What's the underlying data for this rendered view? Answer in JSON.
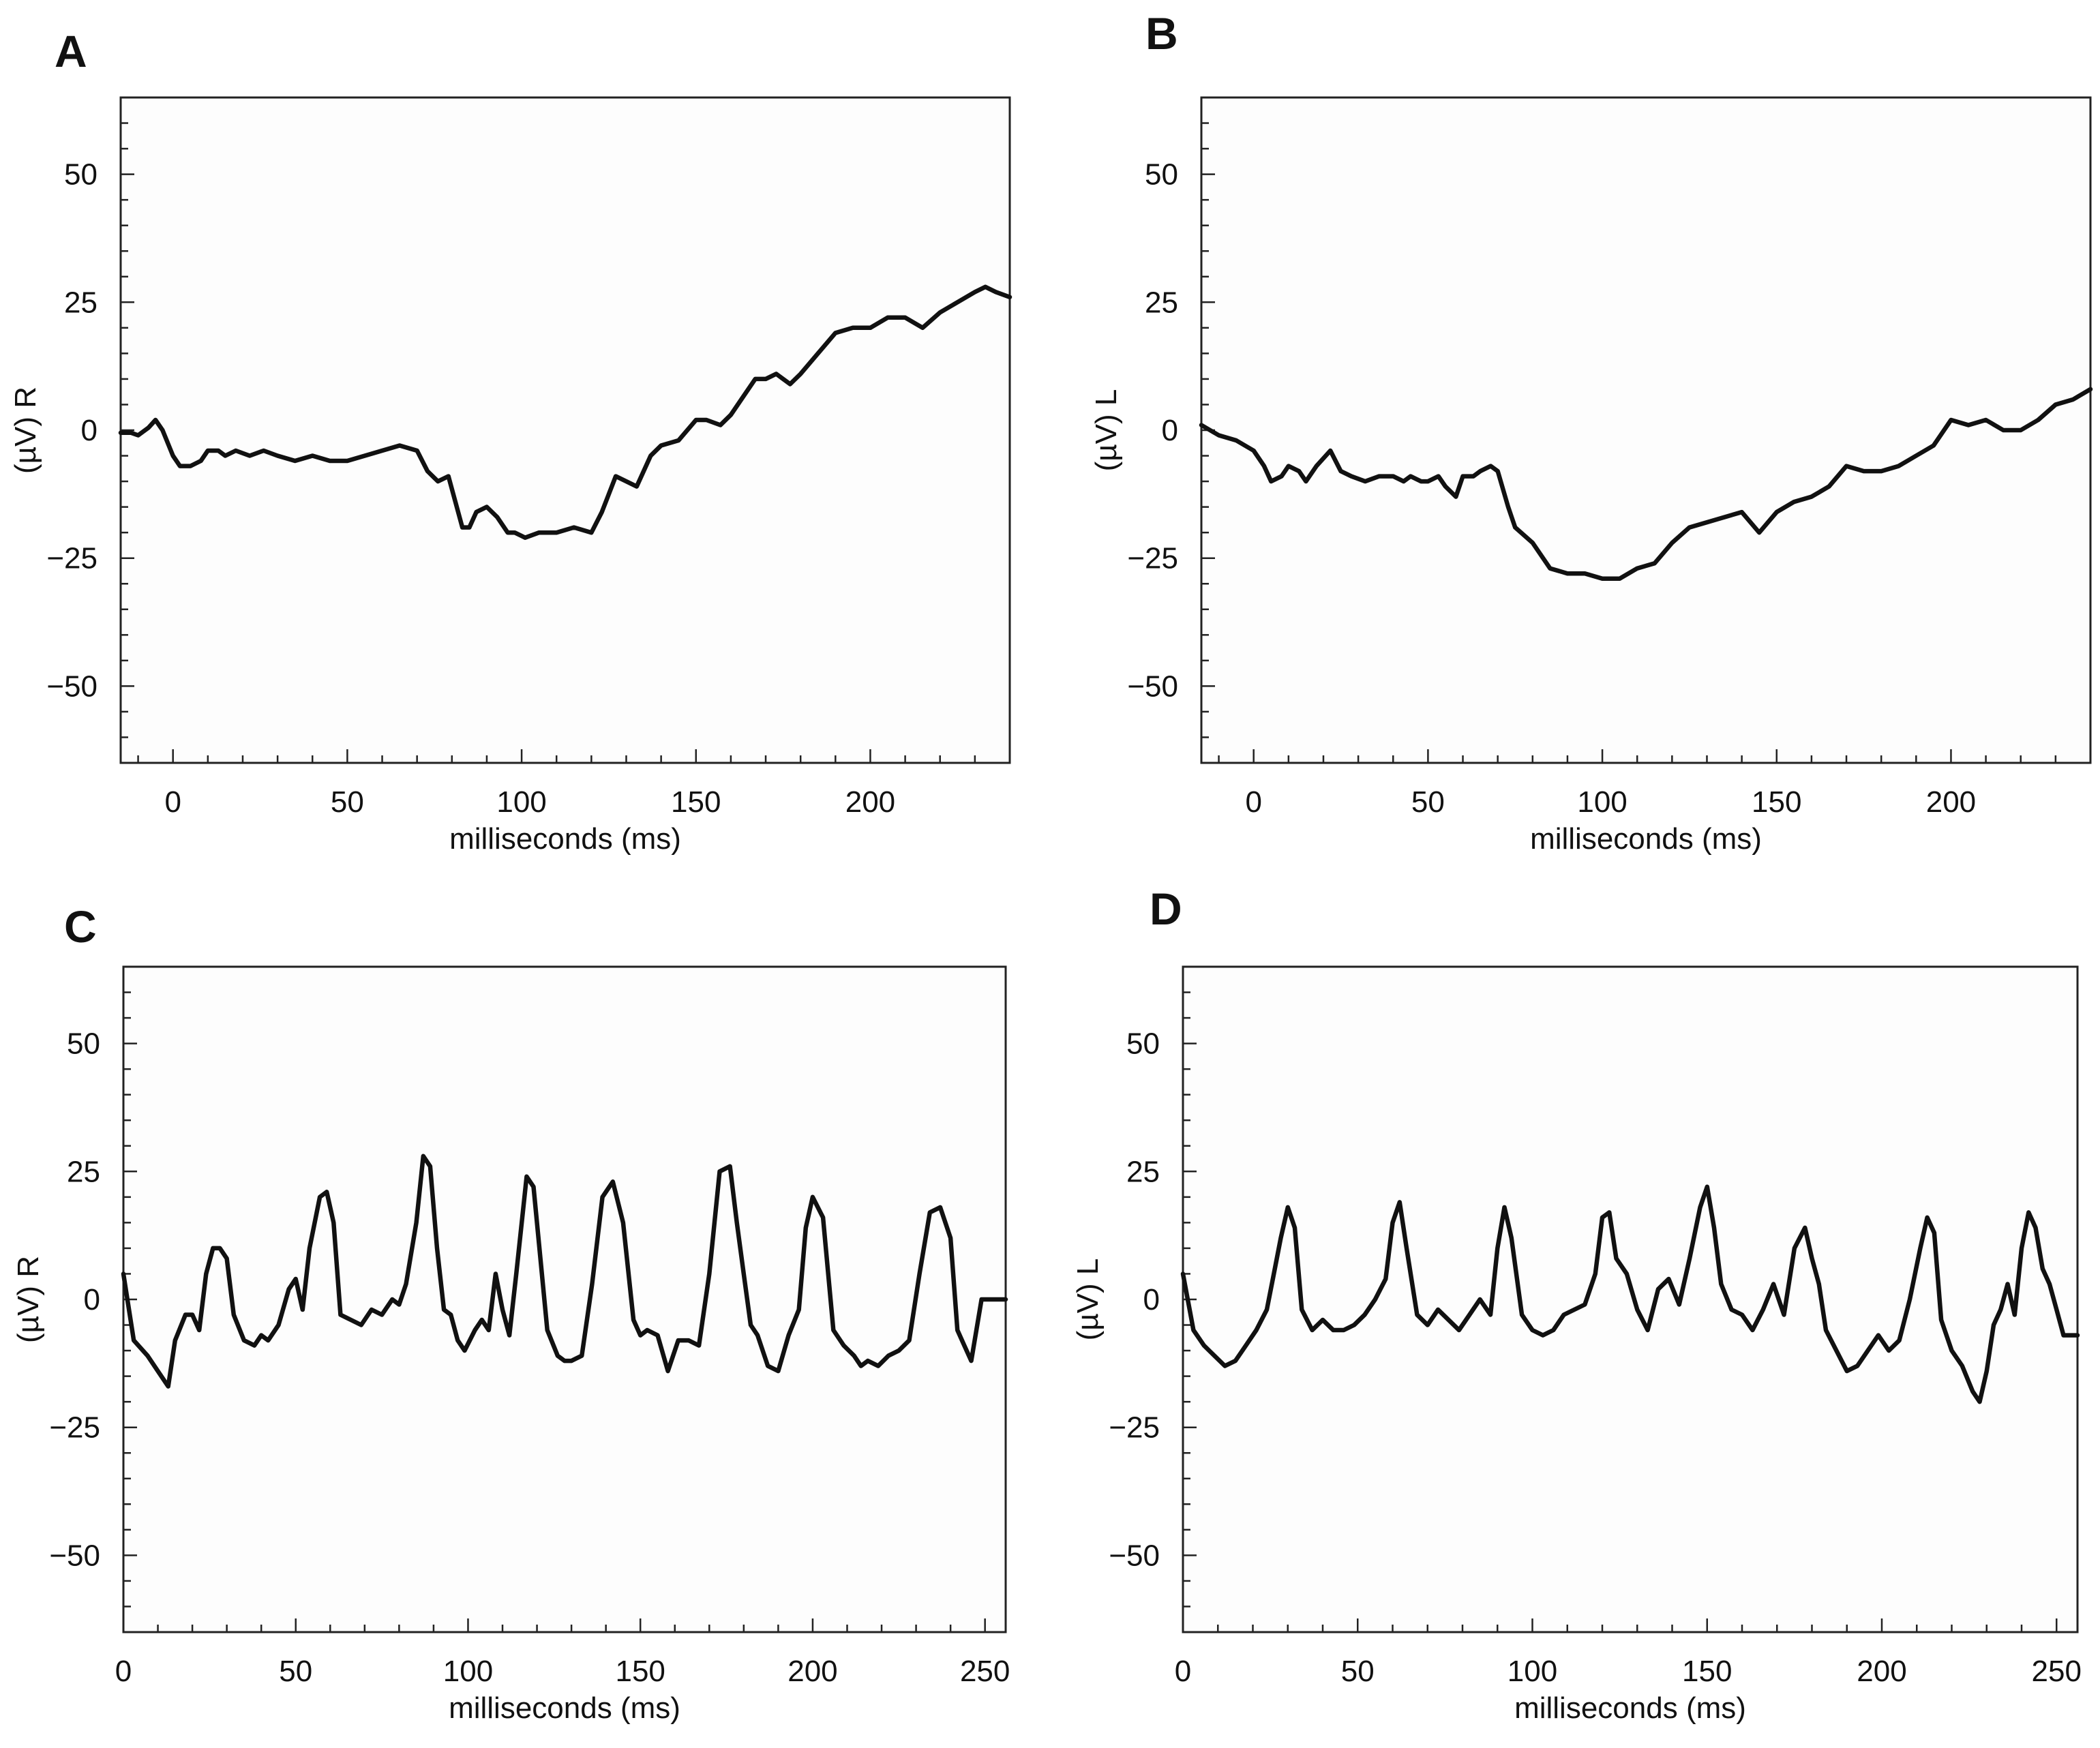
{
  "chart_data": [
    {
      "type": "line",
      "panel": "A",
      "xlabel": "milliseconds (ms)",
      "ylabel": "(µV) R",
      "xlim": [
        -15,
        240
      ],
      "ylim": [
        -65,
        65
      ],
      "xticks": [
        0,
        50,
        100,
        150,
        200
      ],
      "xtick_labels": [
        "0",
        "50",
        "100",
        "150",
        "200"
      ],
      "yticks": [
        50,
        25,
        0,
        -25,
        -50
      ],
      "ytick_labels": [
        "50",
        "25",
        "0",
        "−25",
        "−50"
      ],
      "series": [
        {
          "name": "R",
          "x": [
            -15,
            -12,
            -10,
            -7,
            -5,
            -3,
            0,
            2,
            5,
            8,
            10,
            13,
            15,
            18,
            22,
            26,
            30,
            35,
            40,
            45,
            50,
            55,
            60,
            65,
            70,
            73,
            76,
            79,
            81,
            83,
            85,
            87,
            90,
            93,
            96,
            98,
            101,
            105,
            110,
            115,
            120,
            123,
            127,
            130,
            133,
            137,
            140,
            145,
            150,
            153,
            157,
            160,
            163,
            167,
            170,
            173,
            177,
            180,
            185,
            190,
            195,
            200,
            205,
            210,
            215,
            220,
            225,
            230,
            233,
            236,
            240
          ],
          "y": [
            -0.5,
            -0.5,
            -1,
            0.5,
            2,
            0,
            -5,
            -7,
            -7,
            -6,
            -4,
            -4,
            -5,
            -4,
            -5,
            -4,
            -5,
            -6,
            -5,
            -6,
            -6,
            -5,
            -4,
            -3,
            -4,
            -8,
            -10,
            -9,
            -14,
            -19,
            -19,
            -16,
            -15,
            -17,
            -20,
            -20,
            -21,
            -20,
            -20,
            -19,
            -20,
            -16,
            -9,
            -10,
            -11,
            -5,
            -3,
            -2,
            2,
            2,
            1,
            3,
            6,
            10,
            10,
            11,
            9,
            11,
            15,
            19,
            20,
            20,
            22,
            22,
            20,
            23,
            25,
            27,
            28,
            27,
            26
          ]
        }
      ]
    },
    {
      "type": "line",
      "panel": "B",
      "xlabel": "milliseconds (ms)",
      "ylabel": "(µV) L",
      "xlim": [
        -15,
        240
      ],
      "ylim": [
        -65,
        65
      ],
      "xticks": [
        0,
        50,
        100,
        150,
        200
      ],
      "xtick_labels": [
        "0",
        "50",
        "100",
        "150",
        "200"
      ],
      "yticks": [
        50,
        25,
        0,
        -25,
        -50
      ],
      "ytick_labels": [
        "50",
        "25",
        "0",
        "−25",
        "−50"
      ],
      "series": [
        {
          "name": "L",
          "x": [
            -15,
            -10,
            -5,
            0,
            3,
            5,
            8,
            10,
            13,
            15,
            18,
            22,
            25,
            28,
            32,
            36,
            40,
            43,
            45,
            48,
            50,
            53,
            55,
            58,
            60,
            63,
            65,
            68,
            70,
            73,
            75,
            80,
            85,
            90,
            95,
            100,
            105,
            110,
            115,
            120,
            125,
            130,
            135,
            140,
            145,
            150,
            155,
            160,
            165,
            170,
            175,
            180,
            185,
            190,
            195,
            200,
            205,
            210,
            215,
            220,
            225,
            230,
            235,
            240
          ],
          "y": [
            1,
            -1,
            -2,
            -4,
            -7,
            -10,
            -9,
            -7,
            -8,
            -10,
            -7,
            -4,
            -8,
            -9,
            -10,
            -9,
            -9,
            -10,
            -9,
            -10,
            -10,
            -9,
            -11,
            -13,
            -9,
            -9,
            -8,
            -7,
            -8,
            -15,
            -19,
            -22,
            -27,
            -28,
            -28,
            -29,
            -29,
            -27,
            -26,
            -22,
            -19,
            -18,
            -17,
            -16,
            -20,
            -16,
            -14,
            -13,
            -11,
            -7,
            -8,
            -8,
            -7,
            -5,
            -3,
            2,
            1,
            2,
            0,
            0,
            2,
            5,
            6,
            8
          ]
        }
      ]
    },
    {
      "type": "line",
      "panel": "C",
      "xlabel": "milliseconds (ms)",
      "ylabel": "(µV) R",
      "xlim": [
        0,
        256
      ],
      "ylim": [
        -65,
        65
      ],
      "xticks": [
        0,
        50,
        100,
        150,
        200,
        250
      ],
      "xtick_labels": [
        "0",
        "50",
        "100",
        "150",
        "200",
        "250"
      ],
      "yticks": [
        50,
        25,
        0,
        -25,
        -50
      ],
      "ytick_labels": [
        "50",
        "25",
        "0",
        "−25",
        "−50"
      ],
      "series": [
        {
          "name": "R",
          "x": [
            0,
            3,
            7,
            10,
            13,
            15,
            18,
            20,
            22,
            24,
            26,
            28,
            30,
            32,
            35,
            38,
            40,
            42,
            45,
            48,
            50,
            52,
            54,
            57,
            59,
            61,
            63,
            66,
            69,
            72,
            75,
            78,
            80,
            82,
            85,
            87,
            89,
            91,
            93,
            95,
            97,
            99,
            102,
            104,
            106,
            108,
            110,
            112,
            114,
            117,
            119,
            121,
            123,
            126,
            128,
            130,
            133,
            136,
            139,
            142,
            145,
            148,
            150,
            152,
            155,
            158,
            161,
            164,
            167,
            170,
            173,
            176,
            178,
            180,
            182,
            184,
            187,
            190,
            193,
            196,
            198,
            200,
            203,
            206,
            209,
            212,
            214,
            216,
            219,
            222,
            225,
            228,
            231,
            234,
            237,
            240,
            242,
            244,
            246,
            249,
            252,
            254,
            256
          ],
          "y": [
            5,
            -8,
            -11,
            -14,
            -17,
            -8,
            -3,
            -3,
            -6,
            5,
            10,
            10,
            8,
            -3,
            -8,
            -9,
            -7,
            -8,
            -5,
            2,
            4,
            -2,
            10,
            20,
            21,
            15,
            -3,
            -4,
            -5,
            -2,
            -3,
            0,
            -1,
            3,
            15,
            28,
            26,
            10,
            -2,
            -3,
            -8,
            -10,
            -6,
            -4,
            -6,
            5,
            -2,
            -7,
            5,
            24,
            22,
            8,
            -6,
            -11,
            -12,
            -12,
            -11,
            3,
            20,
            23,
            15,
            -4,
            -7,
            -6,
            -7,
            -14,
            -8,
            -8,
            -9,
            5,
            25,
            26,
            15,
            5,
            -5,
            -7,
            -13,
            -14,
            -7,
            -2,
            14,
            20,
            16,
            -6,
            -9,
            -11,
            -13,
            -12,
            -13,
            -11,
            -10,
            -8,
            5,
            17,
            18,
            12,
            -6,
            -9,
            -12,
            0,
            0,
            0,
            0
          ],
          "_comment": ""
        }
      ]
    },
    {
      "type": "line",
      "panel": "D",
      "xlabel": "milliseconds (ms)",
      "ylabel": "(µV) L",
      "xlim": [
        0,
        256
      ],
      "ylim": [
        -65,
        65
      ],
      "xticks": [
        0,
        50,
        100,
        150,
        200,
        250
      ],
      "xtick_labels": [
        "0",
        "50",
        "100",
        "150",
        "200",
        "250"
      ],
      "yticks": [
        50,
        25,
        0,
        -25,
        -50
      ],
      "ytick_labels": [
        "50",
        "25",
        "0",
        "−25",
        "−50"
      ],
      "series": [
        {
          "name": "L",
          "x": [
            0,
            3,
            6,
            9,
            12,
            15,
            18,
            21,
            24,
            26,
            28,
            30,
            32,
            34,
            37,
            40,
            43,
            46,
            49,
            52,
            55,
            58,
            60,
            62,
            64,
            67,
            70,
            73,
            76,
            79,
            82,
            85,
            88,
            90,
            92,
            94,
            97,
            100,
            103,
            106,
            109,
            112,
            115,
            118,
            120,
            122,
            124,
            127,
            130,
            133,
            136,
            139,
            142,
            145,
            148,
            150,
            152,
            154,
            157,
            160,
            163,
            166,
            169,
            172,
            175,
            178,
            180,
            182,
            184,
            187,
            190,
            193,
            196,
            199,
            202,
            205,
            208,
            211,
            213,
            215,
            217,
            220,
            223,
            226,
            228,
            230,
            232,
            234,
            236,
            238,
            240,
            242,
            244,
            246,
            248,
            250,
            252,
            254,
            256
          ],
          "y": [
            5,
            -6,
            -9,
            -11,
            -13,
            -12,
            -9,
            -6,
            -2,
            5,
            12,
            18,
            14,
            -2,
            -6,
            -4,
            -6,
            -6,
            -5,
            -3,
            0,
            4,
            15,
            19,
            10,
            -3,
            -5,
            -2,
            -4,
            -6,
            -3,
            0,
            -3,
            10,
            18,
            12,
            -3,
            -6,
            -7,
            -6,
            -3,
            -2,
            -1,
            5,
            16,
            17,
            8,
            5,
            -2,
            -6,
            2,
            4,
            -1,
            8,
            18,
            22,
            14,
            3,
            -2,
            -3,
            -6,
            -2,
            3,
            -3,
            10,
            14,
            8,
            3,
            -6,
            -10,
            -14,
            -13,
            -10,
            -7,
            -10,
            -8,
            0,
            10,
            16,
            13,
            -4,
            -10,
            -13,
            -18,
            -20,
            -14,
            -5,
            -2,
            3,
            -3,
            10,
            17,
            14,
            6,
            3,
            -2,
            -7,
            -7,
            -7
          ]
        }
      ]
    }
  ],
  "panels": [
    {
      "letter": "A",
      "ylabel": "(µV) R",
      "xlabel": "milliseconds (ms)"
    },
    {
      "letter": "B",
      "ylabel": "(µV) L",
      "xlabel": "milliseconds (ms)"
    },
    {
      "letter": "C",
      "ylabel": "(µV) R",
      "xlabel": "milliseconds (ms)"
    },
    {
      "letter": "D",
      "ylabel": "(µV) L",
      "xlabel": "milliseconds (ms)"
    }
  ],
  "colors": {
    "trace": "#111111",
    "frame": "#222222",
    "background": "#ffffff"
  }
}
